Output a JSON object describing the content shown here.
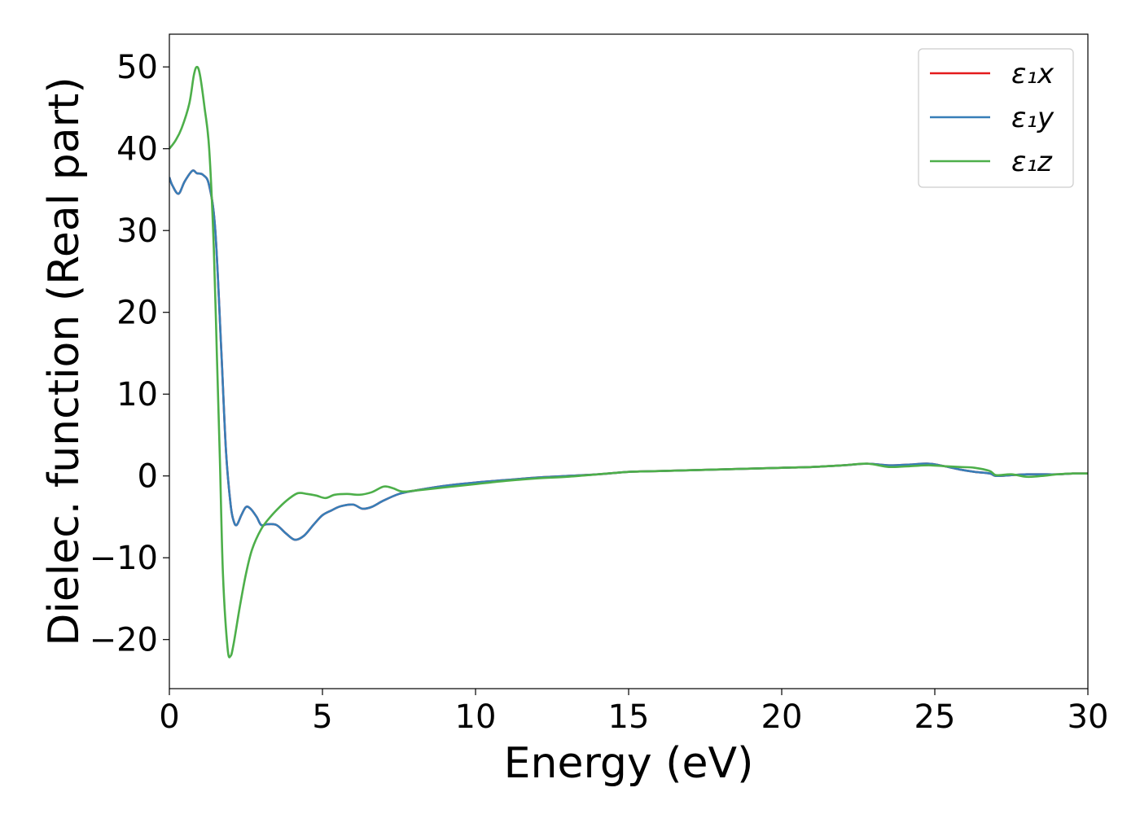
{
  "chart_data": {
    "type": "line",
    "xlabel": "Energy (eV)",
    "ylabel": "Dielec. function (Real part)",
    "xlim": [
      0,
      30
    ],
    "ylim": [
      -26,
      54
    ],
    "xticks": [
      0,
      5,
      10,
      15,
      20,
      25,
      30
    ],
    "xtick_labels": [
      "0",
      "5",
      "10",
      "15",
      "20",
      "25",
      "30"
    ],
    "yticks": [
      -20,
      -10,
      0,
      10,
      20,
      30,
      40,
      50
    ],
    "ytick_labels": [
      "−20",
      "−10",
      "0",
      "10",
      "20",
      "30",
      "40",
      "50"
    ],
    "grid": false,
    "legend_position": "top-right",
    "series": [
      {
        "name": "ε₁x",
        "color": "#e41a1c",
        "x": [
          0,
          0.1,
          0.3,
          0.5,
          0.75,
          0.9,
          1.1,
          1.3,
          1.5,
          1.7,
          1.85,
          2.0,
          2.1,
          2.2,
          2.35,
          2.5,
          2.65,
          2.85,
          3.0,
          3.2,
          3.5,
          3.8,
          4.1,
          4.4,
          4.7,
          5.0,
          5.3,
          5.6,
          6.0,
          6.3,
          6.6,
          7.0,
          7.5,
          8.0,
          9.0,
          10.0,
          11.0,
          12.0,
          13.0,
          14.0,
          15.0,
          16.0,
          17.0,
          18.0,
          19.0,
          20.0,
          21.0,
          22.0,
          22.8,
          23.5,
          24.2,
          24.8,
          25.3,
          25.8,
          26.3,
          26.8,
          27.0,
          27.5,
          28.0,
          28.5,
          29.0,
          29.5,
          30.0
        ],
        "values": [
          36.5,
          35.5,
          34.5,
          36.0,
          37.3,
          37.0,
          36.8,
          35.5,
          30.0,
          15.0,
          3.0,
          -3.5,
          -5.5,
          -6.0,
          -4.8,
          -3.8,
          -4.0,
          -5.0,
          -6.0,
          -5.9,
          -6.0,
          -7.0,
          -7.8,
          -7.3,
          -6.0,
          -4.8,
          -4.2,
          -3.7,
          -3.5,
          -4.0,
          -3.8,
          -3.0,
          -2.2,
          -1.8,
          -1.2,
          -0.8,
          -0.5,
          -0.2,
          0.0,
          0.2,
          0.5,
          0.6,
          0.7,
          0.8,
          0.9,
          1.0,
          1.1,
          1.3,
          1.5,
          1.3,
          1.4,
          1.5,
          1.2,
          0.8,
          0.5,
          0.3,
          0.0,
          0.1,
          0.2,
          0.2,
          0.2,
          0.3,
          0.3
        ]
      },
      {
        "name": "ε₁y",
        "color": "#377eb8",
        "x": [
          0,
          0.1,
          0.3,
          0.5,
          0.75,
          0.9,
          1.1,
          1.3,
          1.5,
          1.7,
          1.85,
          2.0,
          2.1,
          2.2,
          2.35,
          2.5,
          2.65,
          2.85,
          3.0,
          3.2,
          3.5,
          3.8,
          4.1,
          4.4,
          4.7,
          5.0,
          5.3,
          5.6,
          6.0,
          6.3,
          6.6,
          7.0,
          7.5,
          8.0,
          9.0,
          10.0,
          11.0,
          12.0,
          13.0,
          14.0,
          15.0,
          16.0,
          17.0,
          18.0,
          19.0,
          20.0,
          21.0,
          22.0,
          22.8,
          23.5,
          24.2,
          24.8,
          25.3,
          25.8,
          26.3,
          26.8,
          27.0,
          27.5,
          28.0,
          28.5,
          29.0,
          29.5,
          30.0
        ],
        "values": [
          36.5,
          35.5,
          34.5,
          36.0,
          37.3,
          37.0,
          36.8,
          35.5,
          30.0,
          15.0,
          3.0,
          -3.5,
          -5.5,
          -6.0,
          -4.8,
          -3.8,
          -4.0,
          -5.0,
          -6.0,
          -5.9,
          -6.0,
          -7.0,
          -7.8,
          -7.3,
          -6.0,
          -4.8,
          -4.2,
          -3.7,
          -3.5,
          -4.0,
          -3.8,
          -3.0,
          -2.2,
          -1.8,
          -1.2,
          -0.8,
          -0.5,
          -0.2,
          0.0,
          0.2,
          0.5,
          0.6,
          0.7,
          0.8,
          0.9,
          1.0,
          1.1,
          1.3,
          1.5,
          1.3,
          1.4,
          1.5,
          1.2,
          0.8,
          0.5,
          0.3,
          0.0,
          0.1,
          0.2,
          0.2,
          0.2,
          0.3,
          0.3
        ]
      },
      {
        "name": "ε₁z",
        "color": "#4daf4a",
        "x": [
          0,
          0.2,
          0.4,
          0.65,
          0.8,
          0.9,
          1.0,
          1.15,
          1.3,
          1.45,
          1.55,
          1.65,
          1.75,
          1.9,
          2.0,
          2.1,
          2.3,
          2.5,
          2.7,
          3.0,
          3.3,
          3.6,
          3.9,
          4.2,
          4.5,
          4.8,
          5.1,
          5.4,
          5.8,
          6.2,
          6.6,
          7.0,
          7.3,
          7.6,
          8.0,
          9.0,
          10.0,
          11.0,
          12.0,
          13.0,
          14.0,
          15.0,
          16.0,
          17.0,
          18.0,
          19.0,
          20.0,
          21.0,
          22.0,
          22.8,
          23.5,
          24.2,
          24.8,
          25.3,
          25.8,
          26.3,
          26.8,
          27.0,
          27.5,
          28.0,
          28.5,
          29.0,
          29.5,
          30.0
        ],
        "values": [
          40.0,
          41.0,
          42.5,
          45.5,
          49.0,
          50.0,
          49.0,
          45.0,
          40.0,
          28.0,
          15.0,
          2.0,
          -12.0,
          -21.0,
          -22.0,
          -20.5,
          -16.0,
          -12.0,
          -9.0,
          -6.5,
          -5.0,
          -3.8,
          -2.8,
          -2.1,
          -2.2,
          -2.4,
          -2.7,
          -2.3,
          -2.2,
          -2.3,
          -2.0,
          -1.3,
          -1.5,
          -1.9,
          -1.8,
          -1.4,
          -1.0,
          -0.6,
          -0.3,
          -0.1,
          0.2,
          0.5,
          0.6,
          0.7,
          0.8,
          0.9,
          1.0,
          1.1,
          1.3,
          1.5,
          1.1,
          1.2,
          1.3,
          1.2,
          1.1,
          1.0,
          0.6,
          0.1,
          0.2,
          -0.1,
          0.0,
          0.2,
          0.3,
          0.3
        ]
      }
    ]
  }
}
